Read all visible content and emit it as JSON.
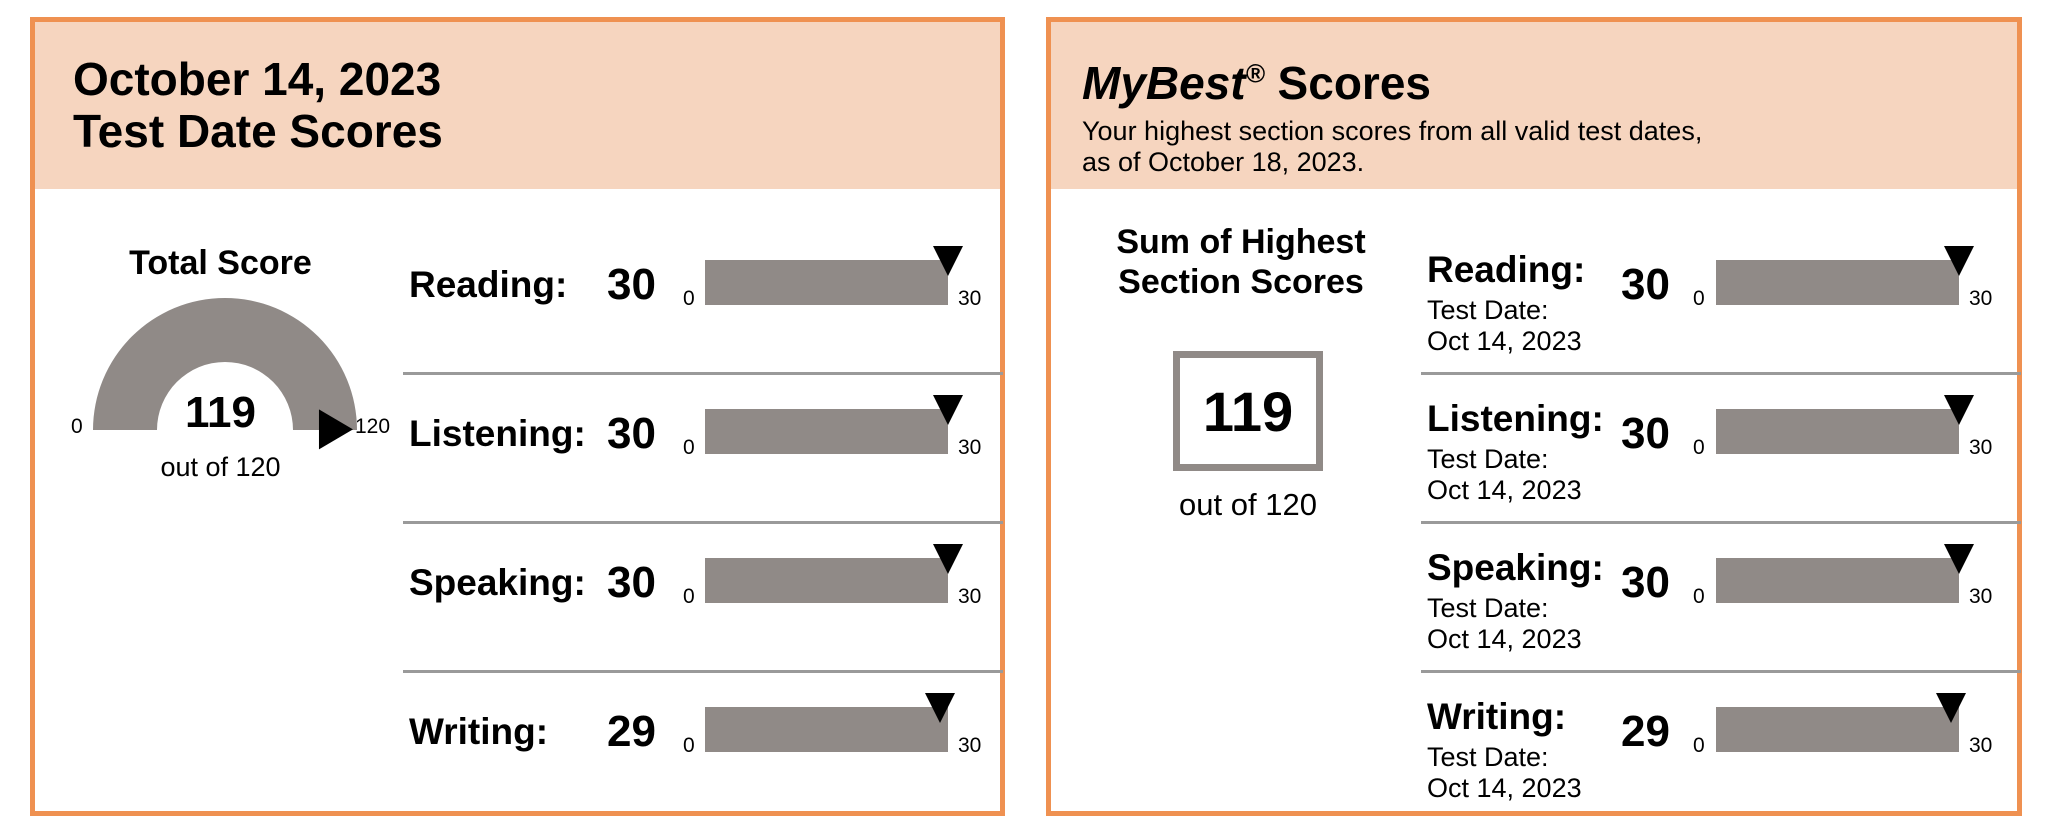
{
  "test_date_panel": {
    "date_line": "October 14, 2023",
    "title_line": "Test Date Scores",
    "total": {
      "title": "Total Score",
      "value": "119",
      "out_of": "out of 120",
      "min_label": "0",
      "max_label": "120",
      "score": 119,
      "max": 120
    },
    "sections": [
      {
        "label": "Reading:",
        "score": "30",
        "min_label": "0",
        "max_label": "30",
        "value": 30,
        "max": 30
      },
      {
        "label": "Listening:",
        "score": "30",
        "min_label": "0",
        "max_label": "30",
        "value": 30,
        "max": 30
      },
      {
        "label": "Speaking:",
        "score": "30",
        "min_label": "0",
        "max_label": "30",
        "value": 30,
        "max": 30
      },
      {
        "label": "Writing:",
        "score": "29",
        "min_label": "0",
        "max_label": "30",
        "value": 29,
        "max": 30
      }
    ]
  },
  "mybest_panel": {
    "title_brand": "MyBest",
    "title_mark": "®",
    "title_rest": " Scores",
    "subtitle_line1": "Your highest section scores from all valid test dates,",
    "subtitle_line2": "as of October 18, 2023.",
    "sum": {
      "title_line1": "Sum of Highest",
      "title_line2": "Section Scores",
      "value": "119",
      "out_of": "out of 120"
    },
    "test_date_label": "Test Date:",
    "sections": [
      {
        "label": "Reading:",
        "date": "Oct 14, 2023",
        "score": "30",
        "min_label": "0",
        "max_label": "30",
        "value": 30,
        "max": 30
      },
      {
        "label": "Listening:",
        "date": "Oct 14, 2023",
        "score": "30",
        "min_label": "0",
        "max_label": "30",
        "value": 30,
        "max": 30
      },
      {
        "label": "Speaking:",
        "date": "Oct 14, 2023",
        "score": "30",
        "min_label": "0",
        "max_label": "30",
        "value": 30,
        "max": 30
      },
      {
        "label": "Writing:",
        "date": "Oct 14, 2023",
        "score": "29",
        "min_label": "0",
        "max_label": "30",
        "value": 29,
        "max": 30
      }
    ]
  },
  "colors": {
    "border": "#ef9151",
    "header_bg": "#f6d5bf",
    "bar": "#908a87",
    "marker": "#000000",
    "divider": "#9a9a9a"
  }
}
